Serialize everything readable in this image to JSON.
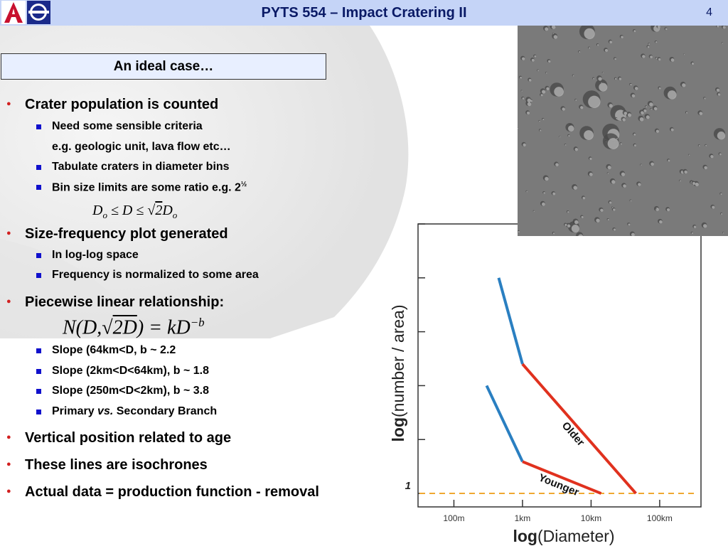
{
  "header": {
    "logo": "university-of-arizona-logo",
    "title": "PYTS 554 – Impact Cratering II",
    "slide_number": "4",
    "color": "#c5d4f7"
  },
  "section_title": "An ideal case…",
  "bullets": {
    "b1": "Crater population is counted",
    "b1_sub1": "Need some sensible criteria",
    "b1_sub1_cont": "e.g. geologic unit, lava flow etc…",
    "b1_sub2": "Tabulate craters in diameter bins",
    "b1_sub3": "Bin size limits are some ratio e.g. 2",
    "b1_sub3_sup": "½",
    "formula_bin": "D_o ≤ D ≤ √2 D_o",
    "b2": "Size-frequency plot generated",
    "b2_sub1": "In log-log space",
    "b2_sub2": "Frequency is normalized to some area",
    "b3": "Piecewise linear relationship:",
    "formula_power_law": "N(D,√2D) = kD^−b",
    "b3_sub1": "Slope (64km<D,           b ~ 2.2",
    "b3_sub2": "Slope (2km<D<64km), b ~ 1.8",
    "b3_sub3": "Slope (250m<D<2km), b ~ 3.8",
    "b3_sub4_pre": "Primary ",
    "b3_sub4_em": "vs.",
    "b3_sub4_post": " Secondary Branch",
    "b4": "Vertical position related to age",
    "b5": "These lines are isochrones",
    "b6": "Actual data = production function - removal"
  },
  "photo": {
    "subject": "cratered-surface-image"
  },
  "chart_data": {
    "type": "line",
    "xlabel_bold": "log",
    "xlabel_rest": "(Diameter)",
    "ylabel_bold": "log",
    "ylabel_rest": "(number / area)",
    "x_ticks": [
      "100m",
      "1km",
      "10km",
      "100km"
    ],
    "x_scale": "log",
    "y_tick_label": "1",
    "y_reference_line": 1,
    "reference_line_color": "#f0a830",
    "colors": {
      "blue_segment": "#2a7fc1",
      "red_segment": "#e0311e"
    },
    "series": [
      {
        "name": "Younger",
        "points": [
          [
            0.3,
            0.4
          ],
          [
            1.0,
            0.118
          ],
          [
            14.0,
            0.0
          ]
        ]
      },
      {
        "name": "Older",
        "points": [
          [
            0.45,
            0.8
          ],
          [
            1.0,
            0.48
          ],
          [
            45.0,
            0.0
          ]
        ]
      }
    ]
  }
}
